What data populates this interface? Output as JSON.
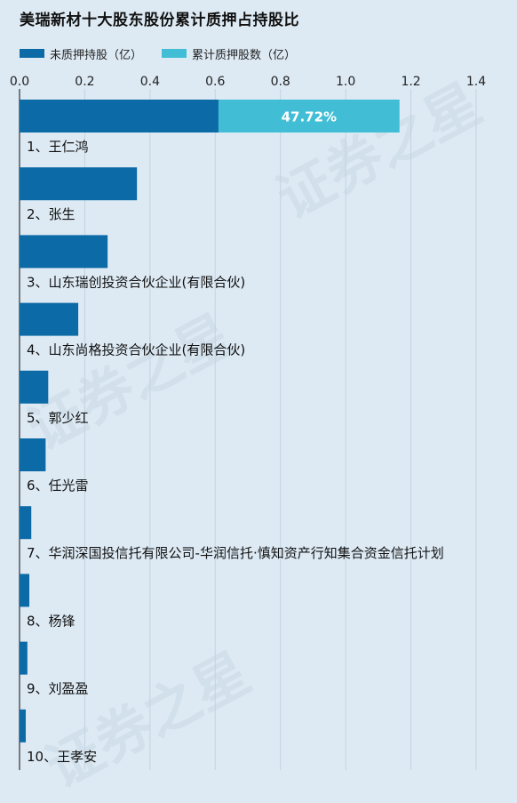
{
  "chart_data": {
    "type": "bar",
    "title": "美瑞新材十大股东股份累计质押占持股比",
    "xlim": [
      0,
      1.4
    ],
    "ticks": [
      "0.0",
      "0.2",
      "0.4",
      "0.6",
      "0.8",
      "1.0",
      "1.2",
      "1.4"
    ],
    "grid": true,
    "legend": "top-left",
    "series": [
      {
        "name": "未质押持股（亿）",
        "color": "#0c6aa6"
      },
      {
        "name": "累计质押股数（亿）",
        "color": "#41bed5"
      }
    ],
    "categories": [
      "1、王仁鸿",
      "2、张生",
      "3、山东瑞创投资合伙企业(有限合伙)",
      "4、山东尚格投资合伙企业(有限合伙)",
      "5、郭少红",
      "6、任光雷",
      "7、华润深国投信托有限公司-华润信托·慎知资产行知集合资金信托计划",
      "8、杨锋",
      "9、刘盈盈",
      "10、王孝安"
    ],
    "unpledged": [
      0.61,
      0.36,
      0.27,
      0.18,
      0.088,
      0.08,
      0.036,
      0.03,
      0.024,
      0.019
    ],
    "pledged": [
      0.555,
      0,
      0,
      0,
      0,
      0,
      0,
      0,
      0,
      0
    ],
    "pledge_ratio_labels": [
      "47.72%",
      "",
      "",
      "",
      "",
      "",
      "",
      "",
      "",
      ""
    ]
  },
  "watermark_text": "证券之星"
}
